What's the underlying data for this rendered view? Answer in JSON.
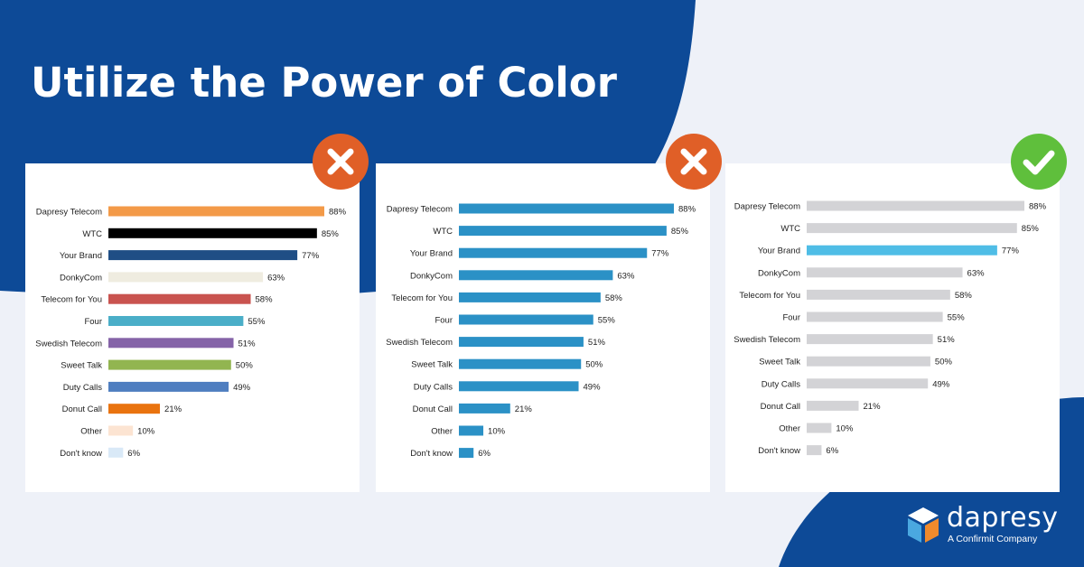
{
  "page": {
    "title": "Utilize the Power of Color",
    "colors": {
      "navy": "#0d4a97",
      "background": "#eef1f8",
      "bad": "#e05f27",
      "good": "#5fbf3c"
    }
  },
  "badges": [
    {
      "status": "bad",
      "icon": "x-icon",
      "color": "#e05f27"
    },
    {
      "status": "bad",
      "icon": "x-icon",
      "color": "#e05f27"
    },
    {
      "status": "good",
      "icon": "check-icon",
      "color": "#5fbf3c"
    }
  ],
  "logo": {
    "name": "dapresy",
    "tagline": "A Confirmit Company",
    "icon": "cube-icon"
  },
  "chart_data": [
    {
      "type": "bar",
      "orientation": "horizontal",
      "categories": [
        "Dapresy Telecom",
        "WTC",
        "Your Brand",
        "DonkyCom",
        "Telecom for You",
        "Four",
        "Swedish Telecom",
        "Sweet Talk",
        "Duty Calls",
        "Donut Call",
        "Other",
        "Don't know"
      ],
      "values": [
        88,
        85,
        77,
        63,
        58,
        55,
        51,
        50,
        49,
        21,
        10,
        6
      ],
      "value_labels": [
        "88%",
        "85%",
        "77%",
        "63%",
        "58%",
        "55%",
        "51%",
        "50%",
        "49%",
        "21%",
        "10%",
        "6%"
      ],
      "colors": [
        "#f39a48",
        "#000000",
        "#1f4e85",
        "#efece0",
        "#c9534f",
        "#4aaec8",
        "#8563a8",
        "#92b550",
        "#4f7ec0",
        "#e9730f",
        "#fce4d2",
        "#d9e9f7"
      ],
      "xlim": [
        0,
        100
      ]
    },
    {
      "type": "bar",
      "orientation": "horizontal",
      "categories": [
        "Dapresy Telecom",
        "WTC",
        "Your Brand",
        "DonkyCom",
        "Telecom for You",
        "Four",
        "Swedish Telecom",
        "Sweet Talk",
        "Duty Calls",
        "Donut Call",
        "Other",
        "Don't know"
      ],
      "values": [
        88,
        85,
        77,
        63,
        58,
        55,
        51,
        50,
        49,
        21,
        10,
        6
      ],
      "value_labels": [
        "88%",
        "85%",
        "77%",
        "63%",
        "58%",
        "55%",
        "51%",
        "50%",
        "49%",
        "21%",
        "10%",
        "6%"
      ],
      "colors": [
        "#2b91c6",
        "#2b91c6",
        "#2b91c6",
        "#2b91c6",
        "#2b91c6",
        "#2b91c6",
        "#2b91c6",
        "#2b91c6",
        "#2b91c6",
        "#2b91c6",
        "#2b91c6",
        "#2b91c6"
      ],
      "xlim": [
        0,
        100
      ]
    },
    {
      "type": "bar",
      "orientation": "horizontal",
      "categories": [
        "Dapresy Telecom",
        "WTC",
        "Your Brand",
        "DonkyCom",
        "Telecom for You",
        "Four",
        "Swedish Telecom",
        "Sweet Talk",
        "Duty Calls",
        "Donut Call",
        "Other",
        "Don't know"
      ],
      "values": [
        88,
        85,
        77,
        63,
        58,
        55,
        51,
        50,
        49,
        21,
        10,
        6
      ],
      "value_labels": [
        "88%",
        "85%",
        "77%",
        "63%",
        "58%",
        "55%",
        "51%",
        "50%",
        "49%",
        "21%",
        "10%",
        "6%"
      ],
      "colors": [
        "#d3d3d6",
        "#d3d3d6",
        "#4fbde6",
        "#d3d3d6",
        "#d3d3d6",
        "#d3d3d6",
        "#d3d3d6",
        "#d3d3d6",
        "#d3d3d6",
        "#d3d3d6",
        "#d3d3d6",
        "#d3d3d6"
      ],
      "xlim": [
        0,
        100
      ]
    }
  ]
}
